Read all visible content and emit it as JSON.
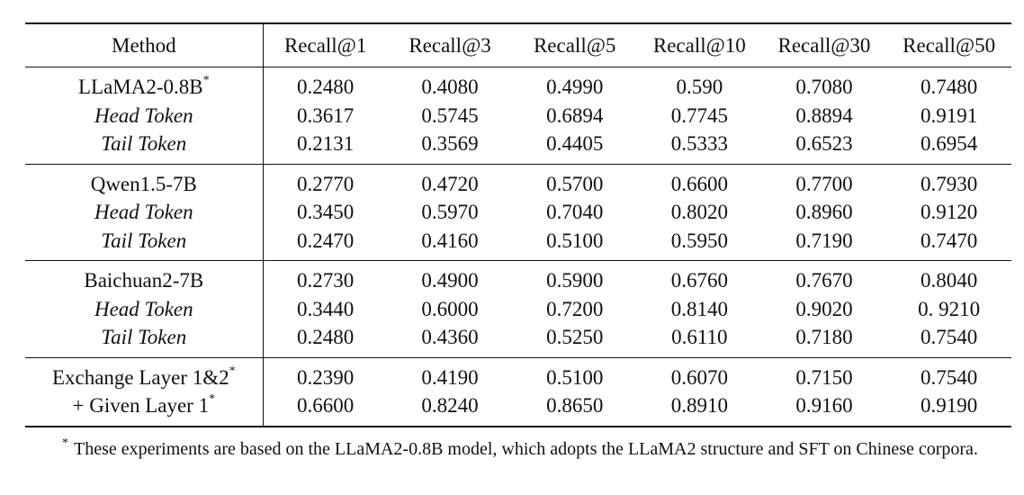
{
  "table": {
    "headers": [
      "Method",
      "Recall@1",
      "Recall@3",
      "Recall@5",
      "Recall@10",
      "Recall@30",
      "Recall@50"
    ],
    "groups": [
      {
        "rows": [
          {
            "method": "LLaMA2-0.8B",
            "mark": "*",
            "style": "normal",
            "values": [
              "0.2480",
              "0.4080",
              "0.4990",
              "0.590",
              "0.7080",
              "0.7480"
            ]
          },
          {
            "method": "Head Token",
            "mark": "",
            "style": "italic",
            "values": [
              "0.3617",
              "0.5745",
              "0.6894",
              "0.7745",
              "0.8894",
              "0.9191"
            ]
          },
          {
            "method": "Tail Token",
            "mark": "",
            "style": "italic",
            "values": [
              "0.2131",
              "0.3569",
              "0.4405",
              "0.5333",
              "0.6523",
              "0.6954"
            ]
          }
        ]
      },
      {
        "rows": [
          {
            "method": "Qwen1.5-7B",
            "mark": "",
            "style": "normal",
            "values": [
              "0.2770",
              "0.4720",
              "0.5700",
              "0.6600",
              "0.7700",
              "0.7930"
            ]
          },
          {
            "method": "Head Token",
            "mark": "",
            "style": "italic",
            "values": [
              "0.3450",
              "0.5970",
              "0.7040",
              "0.8020",
              "0.8960",
              "0.9120"
            ]
          },
          {
            "method": "Tail Token",
            "mark": "",
            "style": "italic",
            "values": [
              "0.2470",
              "0.4160",
              "0.5100",
              "0.5950",
              "0.7190",
              "0.7470"
            ]
          }
        ]
      },
      {
        "rows": [
          {
            "method": "Baichuan2-7B",
            "mark": "",
            "style": "normal",
            "values": [
              "0.2730",
              "0.4900",
              "0.5900",
              "0.6760",
              "0.7670",
              "0.8040"
            ]
          },
          {
            "method": "Head Token",
            "mark": "",
            "style": "italic",
            "values": [
              "0.3440",
              "0.6000",
              "0.7200",
              "0.8140",
              "0.9020",
              "0. 9210"
            ]
          },
          {
            "method": "Tail Token",
            "mark": "",
            "style": "italic",
            "values": [
              "0.2480",
              "0.4360",
              "0.5250",
              "0.6110",
              "0.7180",
              "0.7540"
            ]
          }
        ]
      },
      {
        "rows": [
          {
            "method": "Exchange Layer 1&2",
            "mark": "*",
            "style": "normal",
            "bold_values": false,
            "values": [
              "0.2390",
              "0.4190",
              "0.5100",
              "0.6070",
              "0.7150",
              "0.7540"
            ]
          },
          {
            "method": "+ Given Layer 1",
            "mark": "*",
            "style": "normal",
            "bold_values": true,
            "values": [
              "0.6600",
              "0.8240",
              "0.8650",
              "0.8910",
              "0.9160",
              "0.9190"
            ]
          }
        ]
      }
    ]
  },
  "footnote": {
    "mark": "*",
    "text": "These experiments are based on the LLaMA2-0.8B model, which adopts the LLaMA2 structure and SFT on Chinese corpora."
  }
}
